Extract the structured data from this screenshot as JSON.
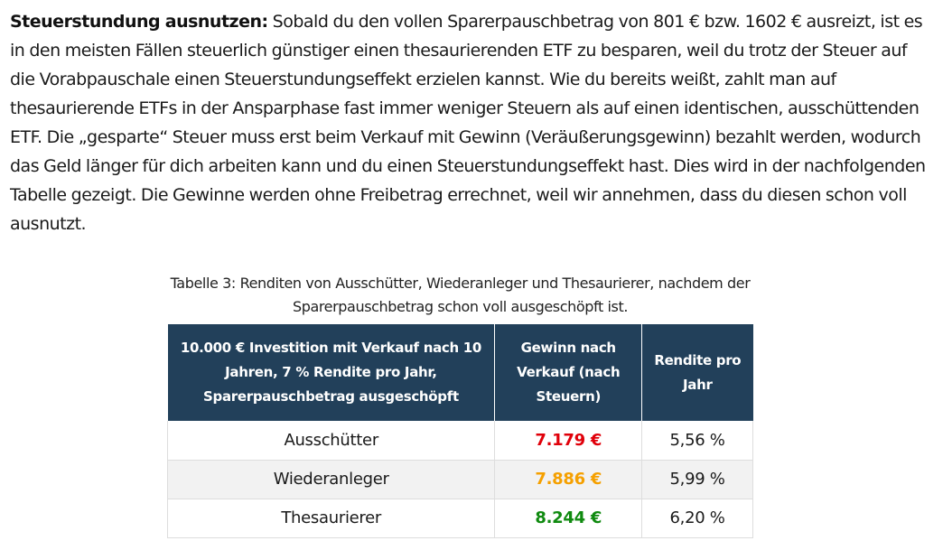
{
  "paragraph": {
    "heading": "Steuerstundung ausnutzen:",
    "text": "Sobald du den vollen Sparerpauschbetrag von 801 € bzw. 1602 € ausreizt, ist es in den meisten Fällen steuerlich günstiger einen thesaurierenden ETF zu besparen, weil du trotz der Steuer auf die Vorabpauschale einen Steuerstundungseffekt erzielen kannst. Wie du bereits weißt, zahlt man auf thesaurierende ETFs in der Ansparphase fast immer weniger Steuern als auf einen identischen, ausschüttenden ETF. Die „gesparte“ Steuer muss erst beim Verkauf mit Gewinn (Veräußerungsgewinn) bezahlt werden, wodurch das Geld länger für dich arbeiten kann und du einen Steuerstundungseffekt hast. Dies wird in der nachfolgenden Tabelle gezeigt. Die Gewinne werden ohne Freibetrag errechnet, weil wir annehmen, dass du diesen schon voll ausnutzt."
  },
  "table": {
    "caption": "Tabelle 3: Renditen von Ausschütter, Wiederanleger und Thesaurierer, nachdem der Sparerpauschbetrag schon voll ausgeschöpft ist.",
    "headers": [
      "10.000 € Investition mit Verkauf nach 10 Jahren, 7 % Rendite pro Jahr, Sparerpauschbetrag ausgeschöpft",
      "Gewinn nach Verkauf (nach Steuern)",
      "Rendite pro Jahr"
    ],
    "rows": [
      {
        "type": "Ausschütter",
        "gain": "7.179 €",
        "return": "5,56 %"
      },
      {
        "type": "Wiederanleger",
        "gain": "7.886 €",
        "return": "5,99 %"
      },
      {
        "type": "Thesaurierer",
        "gain": "8.244 €",
        "return": "6,20 %"
      }
    ]
  },
  "colors": {
    "header_bg": "#22405a",
    "gain_ausschuetter": "#e0000a",
    "gain_wiederanleger": "#f5a000",
    "gain_thesaurierer": "#0f8a0f"
  }
}
